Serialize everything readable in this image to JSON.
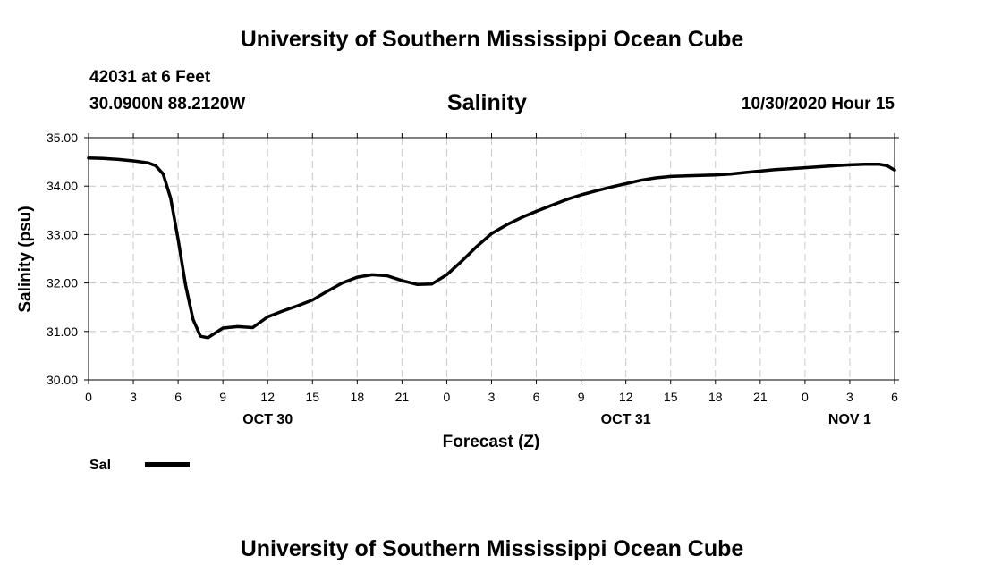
{
  "header": {
    "title": "University of Southern Mississippi Ocean Cube",
    "station_line1": "42031 at 6 Feet",
    "station_line2": "30.0900N 88.2120W",
    "subtitle": "Salinity",
    "datetime": "10/30/2020 Hour 15"
  },
  "footer": {
    "title": "University of Southern Mississippi Ocean Cube"
  },
  "chart_data": {
    "type": "line",
    "title": "Salinity",
    "xlabel": "Forecast (Z)",
    "ylabel": "Salinity (psu)",
    "xlim": [
      0,
      54
    ],
    "ylim": [
      30.0,
      35.0
    ],
    "grid": true,
    "x_ticks": [
      0,
      3,
      6,
      9,
      12,
      15,
      18,
      21,
      24,
      27,
      30,
      33,
      36,
      39,
      42,
      45,
      48,
      51,
      54
    ],
    "x_tick_labels": [
      "0",
      "3",
      "6",
      "9",
      "12",
      "15",
      "18",
      "21",
      "0",
      "3",
      "6",
      "9",
      "12",
      "15",
      "18",
      "21",
      "0",
      "3",
      "6"
    ],
    "y_ticks": [
      30,
      31,
      32,
      33,
      34,
      35
    ],
    "y_tick_labels": [
      "30.00",
      "31.00",
      "32.00",
      "33.00",
      "34.00",
      "35.00"
    ],
    "day_labels": [
      {
        "x": 12,
        "label": "OCT 30"
      },
      {
        "x": 36,
        "label": "OCT 31"
      },
      {
        "x": 51,
        "label": "NOV 1"
      }
    ],
    "legend": {
      "placement": "bottom-left",
      "entries": [
        "Sal"
      ]
    },
    "series": [
      {
        "name": "Sal",
        "color": "#000000",
        "x": [
          0,
          1,
          2,
          3,
          4,
          4.5,
          5,
          5.5,
          6,
          6.5,
          7,
          7.5,
          8,
          8.5,
          9,
          10,
          11,
          12,
          13,
          14,
          15,
          16,
          17,
          18,
          19,
          20,
          21,
          22,
          23,
          24,
          25,
          26,
          27,
          28,
          29,
          30,
          31,
          32,
          33,
          34,
          35,
          36,
          37,
          38,
          39,
          40,
          41,
          42,
          43,
          44,
          45,
          46,
          47,
          48,
          49,
          50,
          51,
          52,
          53,
          53.5,
          54
        ],
        "values": [
          34.58,
          34.57,
          34.55,
          34.52,
          34.48,
          34.42,
          34.25,
          33.75,
          32.9,
          31.95,
          31.25,
          30.9,
          30.87,
          30.97,
          31.07,
          31.1,
          31.08,
          31.3,
          31.42,
          31.53,
          31.65,
          31.83,
          32.0,
          32.12,
          32.17,
          32.15,
          32.05,
          31.97,
          31.98,
          32.17,
          32.45,
          32.75,
          33.02,
          33.2,
          33.35,
          33.48,
          33.6,
          33.72,
          33.82,
          33.9,
          33.98,
          34.05,
          34.12,
          34.17,
          34.2,
          34.21,
          34.22,
          34.23,
          34.25,
          34.28,
          34.31,
          34.34,
          34.36,
          34.38,
          34.4,
          34.42,
          34.44,
          34.45,
          34.45,
          34.42,
          34.33
        ]
      }
    ]
  }
}
